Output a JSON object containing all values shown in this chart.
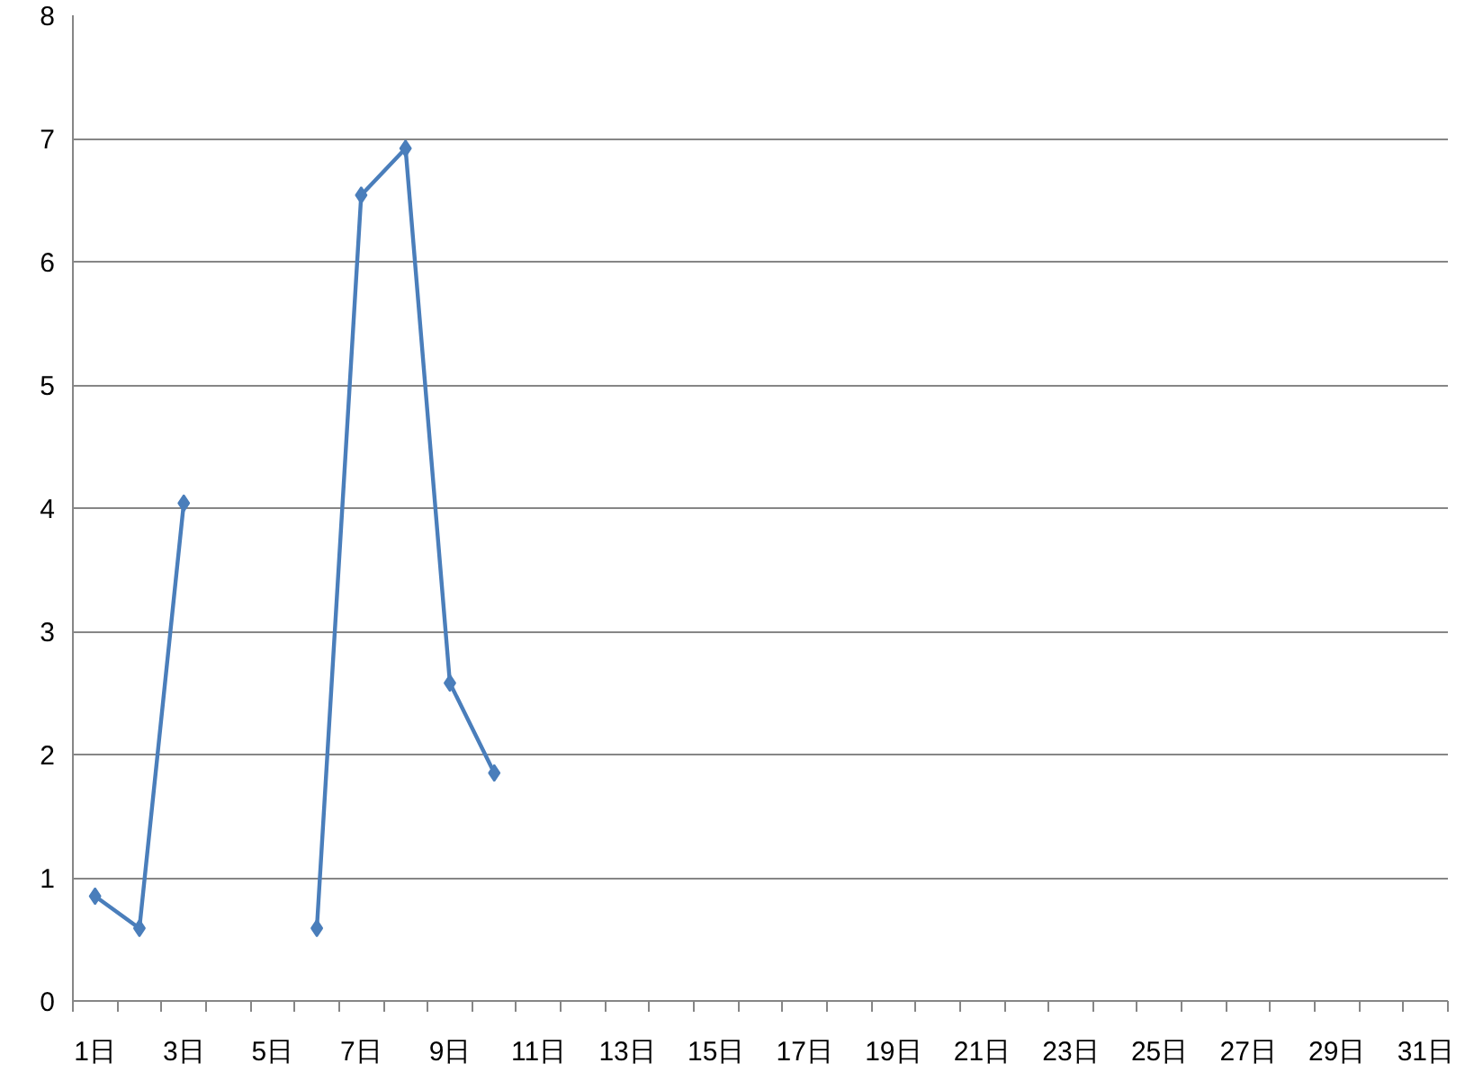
{
  "chart_data": {
    "type": "line",
    "categories": [
      "1日",
      null,
      "3日",
      null,
      "5日",
      null,
      "7日",
      null,
      "9日",
      null,
      "11日",
      null,
      "13日",
      null,
      "15日",
      null,
      "17日",
      null,
      "19日",
      null,
      "21日",
      null,
      "23日",
      null,
      "25日",
      null,
      "27日",
      null,
      "29日",
      null,
      "31日"
    ],
    "series": [
      {
        "color": "#4a7ebb",
        "values": [
          0.85,
          0.59,
          4.04,
          null,
          null,
          0.59,
          6.54,
          6.92,
          2.58,
          1.85,
          null,
          null,
          null,
          null,
          null,
          null,
          null,
          null,
          null,
          null,
          null,
          null,
          null,
          null,
          null,
          null,
          null,
          null,
          null,
          null,
          null
        ]
      }
    ],
    "ylim": [
      0,
      8
    ],
    "yticks": [
      0,
      1,
      2,
      3,
      4,
      5,
      6,
      7,
      8
    ],
    "grid": "y",
    "marker": "diamond"
  }
}
